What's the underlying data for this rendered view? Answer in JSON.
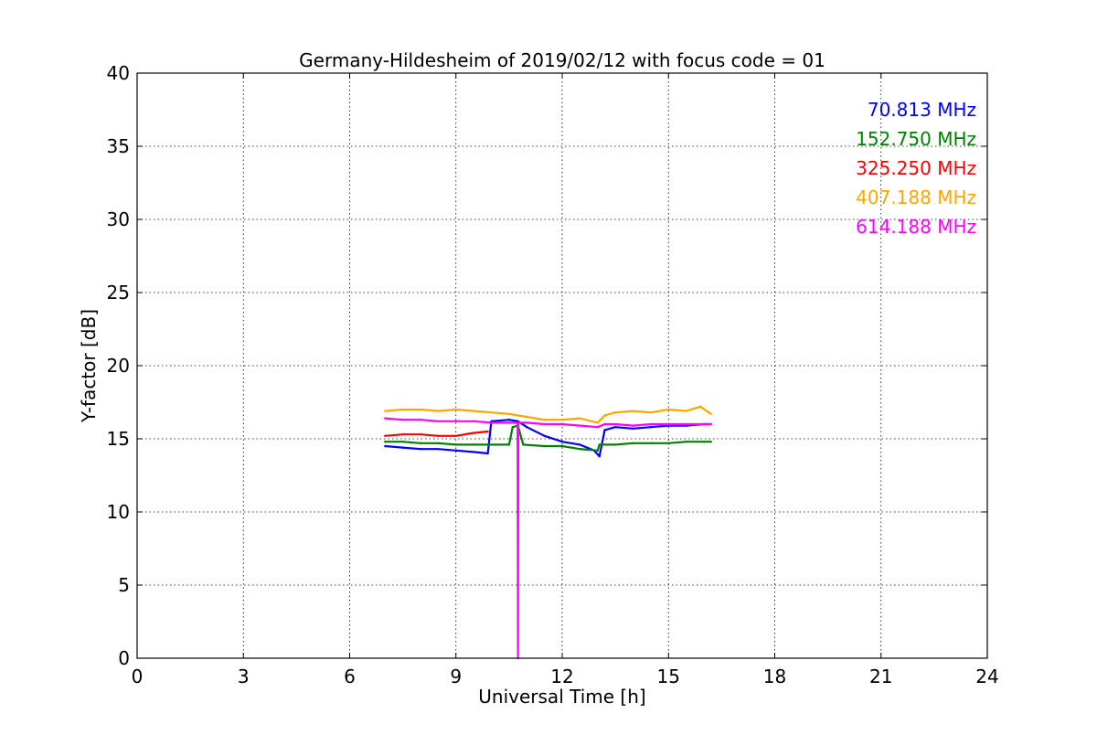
{
  "chart_data": {
    "type": "line",
    "title": "Germany-Hildesheim of 2019/02/12 with focus code = 01",
    "xlabel": "Universal Time [h]",
    "ylabel": "Y-factor [dB]",
    "xlim": [
      0,
      24
    ],
    "ylim": [
      0,
      40
    ],
    "xticks": [
      "0",
      "3",
      "6",
      "9",
      "12",
      "15",
      "18",
      "21",
      "24"
    ],
    "yticks": [
      "0",
      "5",
      "10",
      "15",
      "20",
      "25",
      "30",
      "35",
      "40"
    ],
    "grid": true,
    "legend_position": "top-right",
    "series": [
      {
        "name": "70.813 MHz",
        "color": "#0000ff",
        "x": [
          7.0,
          7.5,
          8.0,
          8.5,
          9.0,
          9.5,
          9.9,
          10.0,
          10.5,
          10.75,
          11.0,
          11.5,
          12.0,
          12.5,
          12.9,
          13.05,
          13.2,
          13.5,
          14.0,
          14.5,
          15.0,
          15.5,
          16.0,
          16.2
        ],
        "y": [
          14.5,
          14.4,
          14.3,
          14.3,
          14.2,
          14.1,
          14.0,
          16.2,
          16.3,
          16.2,
          15.8,
          15.2,
          14.8,
          14.6,
          14.2,
          13.8,
          15.6,
          15.8,
          15.7,
          15.8,
          15.9,
          15.9,
          16.0,
          16.0
        ]
      },
      {
        "name": "152.750 MHz",
        "color": "#008000",
        "x": [
          7.0,
          7.5,
          8.0,
          8.5,
          9.0,
          9.5,
          10.0,
          10.5,
          10.6,
          10.75,
          10.9,
          11.5,
          12.0,
          12.5,
          13.0,
          13.05,
          13.5,
          14.0,
          14.5,
          15.0,
          15.5,
          16.0,
          16.2
        ],
        "y": [
          14.8,
          14.8,
          14.7,
          14.7,
          14.6,
          14.6,
          14.6,
          14.6,
          15.8,
          15.9,
          14.6,
          14.5,
          14.5,
          14.3,
          14.2,
          14.6,
          14.6,
          14.7,
          14.7,
          14.7,
          14.8,
          14.8,
          14.8
        ]
      },
      {
        "name": "325.250 MHz",
        "color": "#ff0000",
        "x": [
          7.0,
          7.5,
          8.0,
          8.5,
          9.0,
          9.5,
          9.9
        ],
        "y": [
          15.2,
          15.3,
          15.3,
          15.2,
          15.2,
          15.4,
          15.5
        ]
      },
      {
        "name": "407.188 MHz",
        "color": "#ffa500",
        "x": [
          7.0,
          7.5,
          8.0,
          8.5,
          9.0,
          9.5,
          10.0,
          10.5,
          11.0,
          11.5,
          12.0,
          12.5,
          13.0,
          13.2,
          13.5,
          14.0,
          14.5,
          15.0,
          15.5,
          15.9,
          16.2
        ],
        "y": [
          16.9,
          17.0,
          17.0,
          16.9,
          17.0,
          16.9,
          16.8,
          16.7,
          16.5,
          16.3,
          16.3,
          16.4,
          16.1,
          16.6,
          16.8,
          16.9,
          16.8,
          17.0,
          16.9,
          17.2,
          16.7
        ]
      },
      {
        "name": "614.188 MHz",
        "color": "#ff00ff",
        "x": [
          7.0,
          7.5,
          8.0,
          8.5,
          9.0,
          9.5,
          10.0,
          10.5,
          10.74,
          10.75,
          10.76,
          11.0,
          11.5,
          12.0,
          12.5,
          13.0,
          13.2,
          13.5,
          14.0,
          14.5,
          15.0,
          15.5,
          16.0,
          16.2
        ],
        "y": [
          16.4,
          16.3,
          16.3,
          16.2,
          16.2,
          16.2,
          16.1,
          16.1,
          16.1,
          0.0,
          16.1,
          16.1,
          16.0,
          16.0,
          15.9,
          15.8,
          16.0,
          16.0,
          15.9,
          16.0,
          16.0,
          16.0,
          16.0,
          16.0
        ]
      }
    ]
  }
}
